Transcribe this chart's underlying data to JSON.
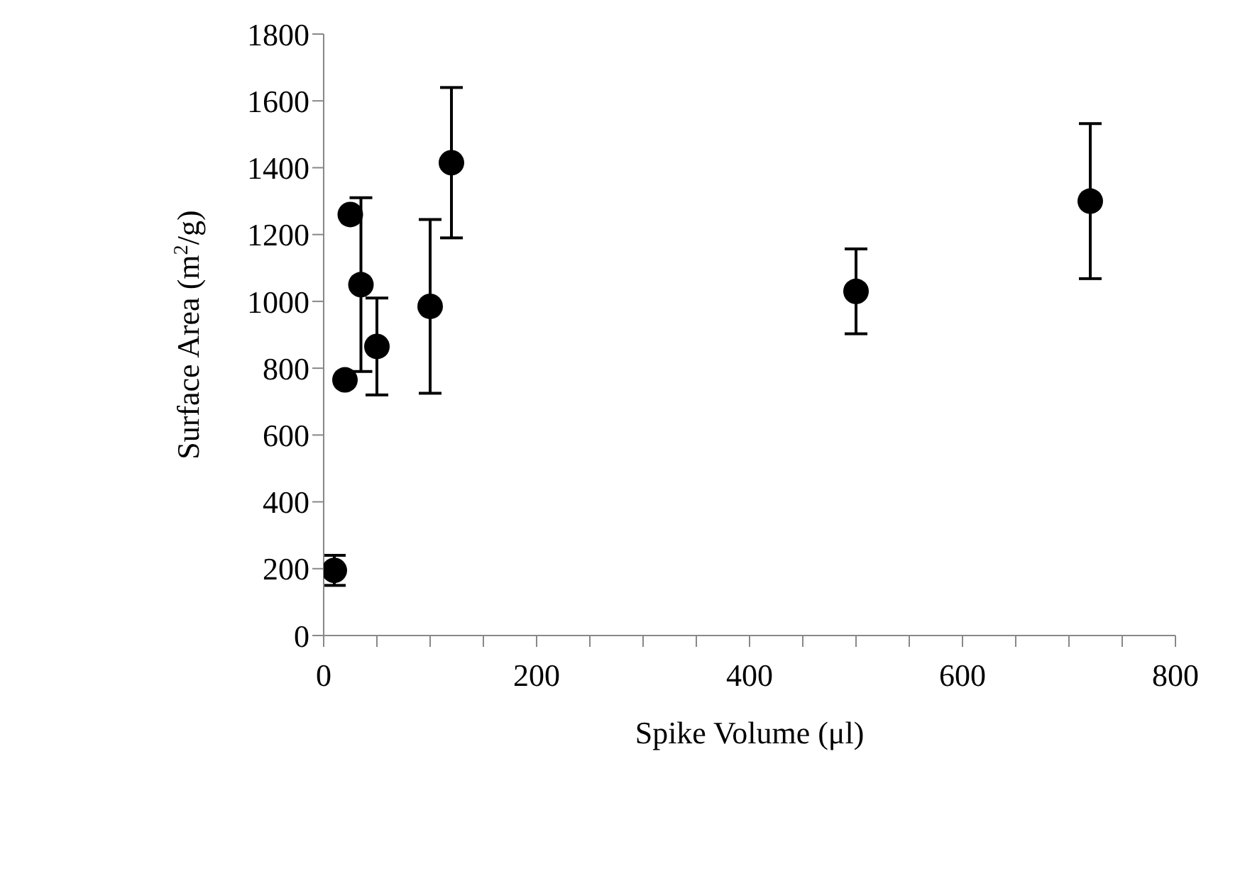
{
  "chart_data": {
    "type": "scatter",
    "xlabel": "Spike Volume (μl)",
    "ylabel": "Surface Area (m$^{2}$/g)",
    "x": [
      10,
      20,
      25,
      35,
      50,
      100,
      120,
      500,
      720
    ],
    "values": [
      195,
      765,
      1260,
      1050,
      865,
      985,
      1415,
      1030,
      1300
    ],
    "errors": [
      45,
      null,
      null,
      260,
      145,
      260,
      225,
      127,
      232
    ],
    "color": "#000000",
    "marker": "circle",
    "xlim": [
      0,
      800
    ],
    "xticks": [
      0,
      {
        "value": 50,
        "label": null
      },
      {
        "value": 100,
        "label": null
      },
      {
        "value": 150,
        "label": null
      },
      200,
      {
        "value": 250,
        "label": null
      },
      {
        "value": 300,
        "label": null
      },
      {
        "value": 350,
        "label": null
      },
      400,
      {
        "value": 450,
        "label": null
      },
      {
        "value": 500,
        "label": null
      },
      {
        "value": 550,
        "label": null
      },
      600,
      {
        "value": 650,
        "label": null
      },
      {
        "value": 700,
        "label": null
      },
      {
        "value": 750,
        "label": null
      },
      800
    ],
    "ylim": [
      0,
      1800
    ],
    "yticks": [
      0,
      200,
      400,
      600,
      800,
      1000,
      1200,
      1400,
      1600,
      1800
    ],
    "grid": false
  }
}
